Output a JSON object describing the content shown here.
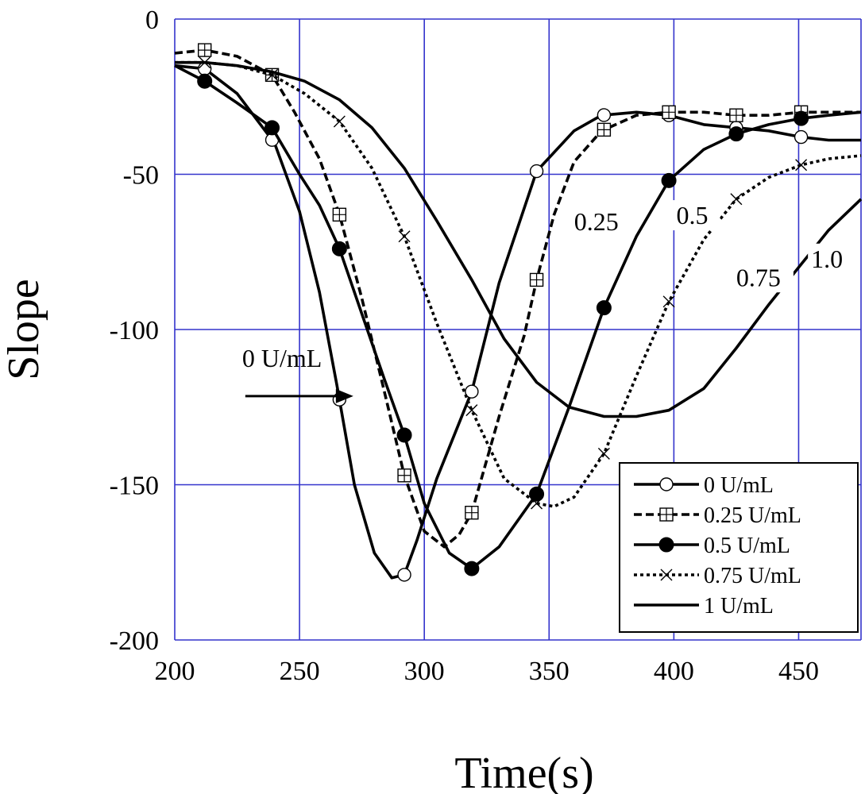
{
  "chart_data": {
    "type": "line",
    "title": "",
    "xlabel": "Time(s)",
    "ylabel": "Slope",
    "xlim": [
      200,
      475
    ],
    "ylim": [
      -200,
      0
    ],
    "xticks": [
      200,
      250,
      300,
      350,
      400,
      450
    ],
    "yticks": [
      0,
      -50,
      -100,
      -150,
      -200
    ],
    "grid": true,
    "grid_color": "#3333cc",
    "legend_position": "bottom-right",
    "series": [
      {
        "name": "0 U/mL",
        "marker": "open-circle",
        "dash": "solid",
        "x": [
          200,
          212,
          225,
          240,
          250,
          258,
          265,
          272,
          280,
          287,
          292,
          297,
          305,
          312,
          319,
          330,
          345,
          360,
          371,
          385,
          398,
          412,
          425,
          438,
          451,
          462,
          475
        ],
        "y": [
          -15,
          -16,
          -24,
          -40,
          -62,
          -88,
          -118,
          -150,
          -172,
          -180,
          -179,
          -168,
          -148,
          -134,
          -120,
          -85,
          -49,
          -36,
          -31,
          -30,
          -31,
          -34,
          -35,
          -36,
          -38,
          -39,
          -39
        ],
        "markers_x": [
          212,
          239,
          266,
          292,
          319,
          345,
          372,
          398,
          425,
          451
        ]
      },
      {
        "name": "0.25 U/mL",
        "marker": "crossed-square",
        "dash": "dashed",
        "x": [
          200,
          212,
          225,
          239,
          248,
          258,
          266,
          275,
          284,
          292,
          300,
          308,
          314,
          319,
          330,
          340,
          345,
          352,
          360,
          371,
          385,
          398,
          412,
          425,
          438,
          451,
          462,
          475
        ],
        "y": [
          -11,
          -10,
          -12,
          -18,
          -30,
          -45,
          -63,
          -90,
          -120,
          -147,
          -165,
          -170,
          -166,
          -159,
          -128,
          -102,
          -84,
          -63,
          -46,
          -36,
          -31,
          -30,
          -30,
          -31,
          -31,
          -30,
          -30,
          -30
        ],
        "markers_x": [
          212,
          239,
          266,
          292,
          319,
          345,
          372,
          398,
          425,
          451
        ]
      },
      {
        "name": "0.5 U/mL",
        "marker": "filled-circle",
        "dash": "solid",
        "x": [
          200,
          212,
          225,
          239,
          250,
          258,
          266,
          275,
          284,
          292,
          300,
          310,
          319,
          330,
          345,
          358,
          372,
          385,
          398,
          412,
          425,
          438,
          451,
          462,
          475
        ],
        "y": [
          -15,
          -20,
          -27,
          -35,
          -50,
          -60,
          -74,
          -95,
          -116,
          -134,
          -156,
          -172,
          -177,
          -170,
          -153,
          -125,
          -93,
          -70,
          -52,
          -42,
          -37,
          -34,
          -32,
          -31,
          -30
        ],
        "markers_x": [
          212,
          239,
          266,
          292,
          319,
          345,
          372,
          398,
          425,
          451
        ]
      },
      {
        "name": "0.75 U/mL",
        "marker": "cross",
        "dash": "dotted",
        "x": [
          200,
          212,
          225,
          239,
          252,
          266,
          279,
          292,
          305,
          319,
          332,
          345,
          352,
          360,
          372,
          385,
          398,
          412,
          425,
          438,
          451,
          462,
          475
        ],
        "y": [
          -14,
          -14,
          -15,
          -18,
          -24,
          -33,
          -48,
          -70,
          -98,
          -126,
          -148,
          -156,
          -157,
          -154,
          -140,
          -115,
          -91,
          -71,
          -58,
          -51,
          -47,
          -45,
          -44
        ],
        "markers_x": [
          212,
          239,
          266,
          292,
          319,
          345,
          372,
          398,
          425,
          451
        ]
      },
      {
        "name": "1 U/mL",
        "marker": "none",
        "dash": "solid",
        "x": [
          200,
          212,
          225,
          239,
          252,
          266,
          279,
          292,
          305,
          319,
          332,
          345,
          358,
          372,
          385,
          398,
          412,
          425,
          438,
          451,
          462,
          475
        ],
        "y": [
          -14,
          -14,
          -15,
          -17,
          -20,
          -26,
          -35,
          -48,
          -65,
          -84,
          -103,
          -117,
          -125,
          -128,
          -128,
          -126,
          -119,
          -106,
          -92,
          -79,
          -68,
          -58
        ],
        "markers_x": []
      }
    ],
    "annotations": [
      {
        "text": "0 U/mL",
        "x": 227,
        "y": -112
      },
      {
        "text": "0.25",
        "x": 360,
        "y": -68
      },
      {
        "text": "0.5",
        "x": 401,
        "y": -66
      },
      {
        "text": "0.75",
        "x": 425,
        "y": -86
      },
      {
        "text": "1.0",
        "x": 455,
        "y": -80
      }
    ]
  }
}
